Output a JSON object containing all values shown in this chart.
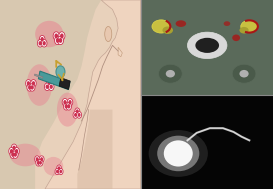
{
  "fig_width": 2.73,
  "fig_height": 1.89,
  "dpi": 100,
  "background_color": "#f5e8d8",
  "ct_bg": "#6a7a6a",
  "ct_bone_color": "#d0d0d0",
  "lymph_node_yellow": "#c8c040",
  "lymph_node_red": "#cc2020",
  "tumor_red": "#aa1515",
  "probe_teal": "#4a9a9a",
  "probe_dark": "#1a1a1a",
  "arrow_gold": "#c8a030",
  "skin_color": "#f0d5c0",
  "pink_tumor": "#e88090",
  "tumor_dots": "#cc3050",
  "neck_shadow": "#d4b8a0"
}
